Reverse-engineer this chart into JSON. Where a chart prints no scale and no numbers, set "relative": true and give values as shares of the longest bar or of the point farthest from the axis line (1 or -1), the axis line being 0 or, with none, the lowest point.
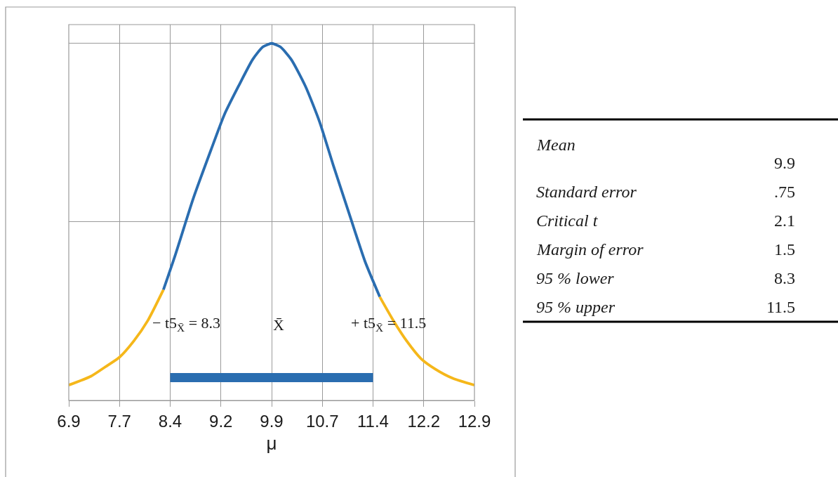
{
  "chart_data": {
    "type": "line",
    "relative": true,
    "xlabel": "μ",
    "xlim": [
      6.9,
      12.9
    ],
    "xticks": [
      6.9,
      {
        "value": 7.65,
        "label": "7.7"
      },
      8.4,
      {
        "value": 9.15,
        "label": "9.2"
      },
      9.9,
      {
        "value": 10.65,
        "label": "10.7"
      },
      11.4,
      {
        "value": 12.15,
        "label": "12.2"
      },
      12.9
    ],
    "grid": true,
    "series": [
      {
        "color": "#f5b71a",
        "x": [
          6.9,
          7.23,
          7.44,
          7.65,
          7.86,
          8.07,
          8.3
        ],
        "values": [
          0.043,
          0.068,
          0.094,
          0.121,
          0.166,
          0.224,
          0.31
        ]
      },
      {
        "color": "#2a6db0",
        "x": [
          8.3,
          8.48,
          8.74,
          9.0,
          9.2,
          9.41,
          9.62,
          9.77,
          9.9,
          10.03,
          10.19,
          10.4,
          10.61,
          10.81,
          11.07,
          11.28,
          11.5
        ],
        "values": [
          0.31,
          0.41,
          0.565,
          0.7,
          0.8,
          0.88,
          0.955,
          0.99,
          1.0,
          0.99,
          0.955,
          0.88,
          0.78,
          0.66,
          0.51,
          0.39,
          0.29
        ]
      },
      {
        "color": "#f5b71a",
        "x": [
          11.5,
          11.7,
          11.9,
          12.11,
          12.32,
          12.58,
          12.9
        ],
        "values": [
          0.29,
          0.224,
          0.166,
          0.117,
          0.088,
          0.062,
          0.043
        ]
      },
      {
        "color": "#2a6db0",
        "x": [
          8.4,
          11.4
        ],
        "values": [
          0.064,
          0.064
        ]
      }
    ],
    "annotations": [
      "− t5$_{X̄}$ = 8.3",
      "X̄",
      "+ t5$_{X̄}$ = 11.5",
      "Mean",
      "9.9",
      "Standard error",
      ".75",
      "Critical t",
      "2.1",
      "Margin of error",
      "1.5",
      "95 % lower",
      "8.3",
      "95 % upper",
      "11.5"
    ]
  }
}
